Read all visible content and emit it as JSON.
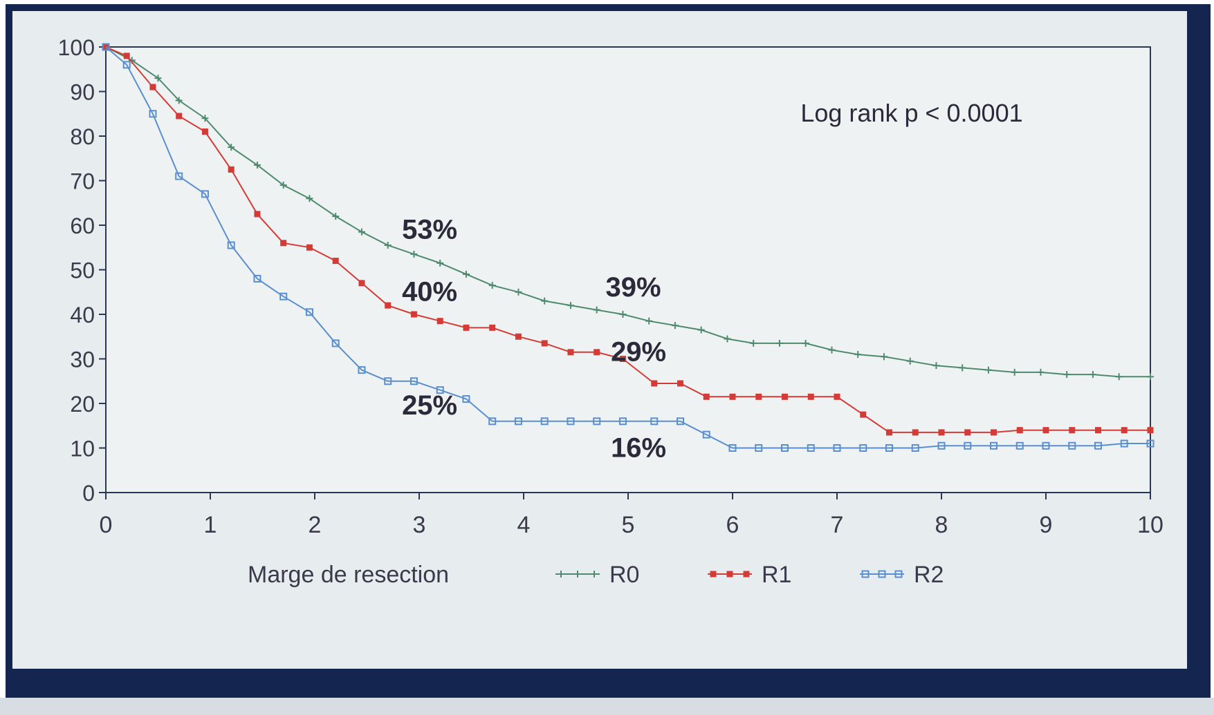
{
  "chart_data": {
    "type": "line",
    "title": "",
    "xlabel": "",
    "ylabel": "",
    "xlim": [
      0,
      10
    ],
    "ylim": [
      0,
      100
    ],
    "x_ticks": [
      "0",
      "1",
      "2",
      "3",
      "4",
      "5",
      "6",
      "7",
      "8",
      "9",
      "10"
    ],
    "y_ticks": [
      "0",
      "10",
      "20",
      "30",
      "40",
      "50",
      "60",
      "70",
      "80",
      "90",
      "100"
    ],
    "grid": false,
    "annotation": "Log rank p < 0.0001",
    "legend": {
      "title": "Marge de resection",
      "placement": "bottom"
    },
    "labels": [
      {
        "text": "53%",
        "x": 3.1,
        "y": 57
      },
      {
        "text": "40%",
        "x": 3.1,
        "y": 43
      },
      {
        "text": "25%",
        "x": 3.1,
        "y": 17.5
      },
      {
        "text": "39%",
        "x": 5.05,
        "y": 44
      },
      {
        "text": "29%",
        "x": 5.1,
        "y": 29.5
      },
      {
        "text": "16%",
        "x": 5.1,
        "y": 8
      }
    ],
    "series": [
      {
        "name": "R0",
        "color": "#4f8a6e",
        "marker": "plus",
        "points": [
          [
            0,
            100
          ],
          [
            0.25,
            97
          ],
          [
            0.5,
            93
          ],
          [
            0.7,
            88
          ],
          [
            0.95,
            84
          ],
          [
            1.2,
            77.5
          ],
          [
            1.45,
            73.5
          ],
          [
            1.7,
            69
          ],
          [
            1.95,
            66
          ],
          [
            2.2,
            62
          ],
          [
            2.45,
            58.5
          ],
          [
            2.7,
            55.5
          ],
          [
            2.95,
            53.5
          ],
          [
            3.2,
            51.5
          ],
          [
            3.45,
            49
          ],
          [
            3.7,
            46.5
          ],
          [
            3.95,
            45
          ],
          [
            4.2,
            43
          ],
          [
            4.45,
            42
          ],
          [
            4.7,
            41
          ],
          [
            4.95,
            40
          ],
          [
            5.2,
            38.5
          ],
          [
            5.45,
            37.5
          ],
          [
            5.7,
            36.5
          ],
          [
            5.95,
            34.5
          ],
          [
            6.2,
            33.5
          ],
          [
            6.45,
            33.5
          ],
          [
            6.7,
            33.5
          ],
          [
            6.95,
            32
          ],
          [
            7.2,
            31
          ],
          [
            7.45,
            30.5
          ],
          [
            7.7,
            29.5
          ],
          [
            7.95,
            28.5
          ],
          [
            8.2,
            28
          ],
          [
            8.45,
            27.5
          ],
          [
            8.7,
            27
          ],
          [
            8.95,
            27
          ],
          [
            9.2,
            26.5
          ],
          [
            9.45,
            26.5
          ],
          [
            9.7,
            26
          ],
          [
            10,
            26
          ]
        ]
      },
      {
        "name": "R1",
        "color": "#d43a36",
        "marker": "square-filled",
        "points": [
          [
            0,
            100
          ],
          [
            0.2,
            98
          ],
          [
            0.45,
            91
          ],
          [
            0.7,
            84.5
          ],
          [
            0.95,
            81
          ],
          [
            1.2,
            72.5
          ],
          [
            1.45,
            62.5
          ],
          [
            1.7,
            56
          ],
          [
            1.95,
            55
          ],
          [
            2.2,
            52
          ],
          [
            2.45,
            47
          ],
          [
            2.7,
            42
          ],
          [
            2.95,
            40
          ],
          [
            3.2,
            38.5
          ],
          [
            3.45,
            37
          ],
          [
            3.7,
            37
          ],
          [
            3.95,
            35
          ],
          [
            4.2,
            33.5
          ],
          [
            4.45,
            31.5
          ],
          [
            4.7,
            31.5
          ],
          [
            4.95,
            30
          ],
          [
            5.25,
            24.5
          ],
          [
            5.5,
            24.5
          ],
          [
            5.75,
            21.5
          ],
          [
            6.0,
            21.5
          ],
          [
            6.25,
            21.5
          ],
          [
            6.5,
            21.5
          ],
          [
            6.75,
            21.5
          ],
          [
            7.0,
            21.5
          ],
          [
            7.25,
            17.5
          ],
          [
            7.5,
            13.5
          ],
          [
            7.75,
            13.5
          ],
          [
            8.0,
            13.5
          ],
          [
            8.25,
            13.5
          ],
          [
            8.5,
            13.5
          ],
          [
            8.75,
            14
          ],
          [
            9.0,
            14
          ],
          [
            9.25,
            14
          ],
          [
            9.5,
            14
          ],
          [
            9.75,
            14
          ],
          [
            10,
            14
          ]
        ]
      },
      {
        "name": "R2",
        "color": "#5a8fcf",
        "marker": "square-open",
        "points": [
          [
            0,
            100
          ],
          [
            0.2,
            96
          ],
          [
            0.45,
            85
          ],
          [
            0.7,
            71
          ],
          [
            0.95,
            67
          ],
          [
            1.2,
            55.5
          ],
          [
            1.45,
            48
          ],
          [
            1.7,
            44
          ],
          [
            1.95,
            40.5
          ],
          [
            2.2,
            33.5
          ],
          [
            2.45,
            27.5
          ],
          [
            2.7,
            25
          ],
          [
            2.95,
            25
          ],
          [
            3.2,
            23
          ],
          [
            3.45,
            21
          ],
          [
            3.7,
            16
          ],
          [
            3.95,
            16
          ],
          [
            4.2,
            16
          ],
          [
            4.45,
            16
          ],
          [
            4.7,
            16
          ],
          [
            4.95,
            16
          ],
          [
            5.25,
            16
          ],
          [
            5.5,
            16
          ],
          [
            5.75,
            13
          ],
          [
            6.0,
            10
          ],
          [
            6.25,
            10
          ],
          [
            6.5,
            10
          ],
          [
            6.75,
            10
          ],
          [
            7.0,
            10
          ],
          [
            7.25,
            10
          ],
          [
            7.5,
            10
          ],
          [
            7.75,
            10
          ],
          [
            8.0,
            10.5
          ],
          [
            8.25,
            10.5
          ],
          [
            8.5,
            10.5
          ],
          [
            8.75,
            10.5
          ],
          [
            9.0,
            10.5
          ],
          [
            9.25,
            10.5
          ],
          [
            9.5,
            10.5
          ],
          [
            9.75,
            11
          ],
          [
            10,
            11
          ]
        ]
      }
    ]
  }
}
